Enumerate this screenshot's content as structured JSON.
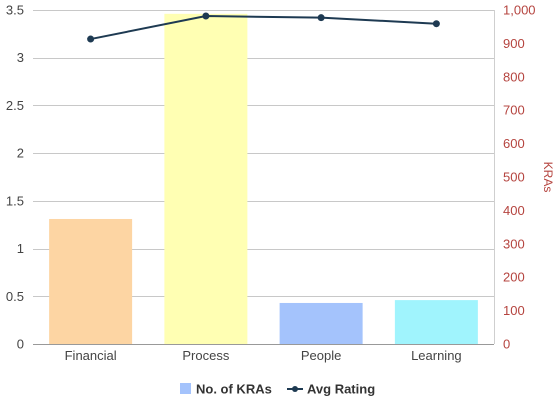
{
  "chart_data": {
    "type": "bar",
    "categories": [
      "Financial",
      "Process",
      "People",
      "Learning"
    ],
    "series": [
      {
        "name": "No. of KRAs",
        "kind": "bar",
        "axis": "left",
        "values": [
          1.31,
          3.46,
          0.43,
          0.46
        ],
        "colors": [
          "#fdd5a3",
          "#ffffb3",
          "#a4c3fc",
          "#a0f4fd"
        ]
      },
      {
        "name": "Avg Rating",
        "kind": "line",
        "axis": "right",
        "values": [
          913,
          982,
          977,
          959
        ],
        "color": "#1e3a52"
      }
    ],
    "y_left": {
      "label": "",
      "ylim": [
        0,
        3.5
      ],
      "ticks": [
        0,
        0.5,
        1,
        1.5,
        2,
        2.5,
        3,
        3.5
      ],
      "tick_labels": [
        "0",
        "0.5",
        "1",
        "1.5",
        "2",
        "2.5",
        "3",
        "3.5"
      ]
    },
    "y_right": {
      "label": "KRAs",
      "ylim": [
        0,
        1000
      ],
      "ticks": [
        0,
        100,
        200,
        300,
        400,
        500,
        600,
        700,
        800,
        900,
        1000
      ],
      "tick_labels": [
        "0",
        "100",
        "200",
        "300",
        "400",
        "500",
        "600",
        "700",
        "800",
        "900",
        "1,000"
      ],
      "color": "#b5443f"
    },
    "grid": true,
    "legend": "bottom-center",
    "legend_swatch_color": "#a4c3fc"
  }
}
